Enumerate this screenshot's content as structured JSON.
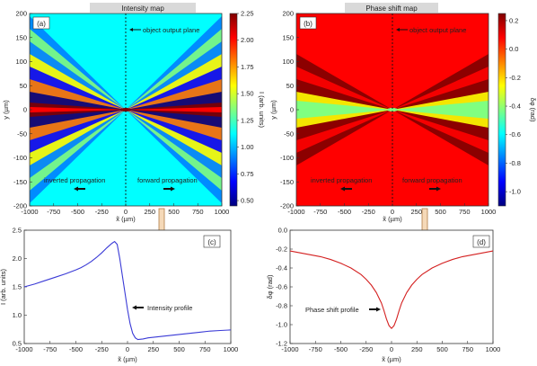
{
  "chart_data": [
    {
      "id": "a",
      "type": "heatmap",
      "title": "Intensity map",
      "panel_label": "(a)",
      "xlabel": "x̃ (µm)",
      "ylabel": "y (µm)",
      "xlim": [
        -1000,
        1000
      ],
      "ylim": [
        -200,
        200
      ],
      "xticks": [
        "-1000",
        "-750",
        "-500",
        "-250",
        "0",
        "250",
        "500",
        "750",
        "1000"
      ],
      "yticks": [
        "200",
        "150",
        "100",
        "50",
        "0",
        "-50",
        "-100",
        "-150",
        "-200"
      ],
      "colorbar": {
        "label": "I (arb. units)",
        "range": [
          0.45,
          2.25
        ],
        "ticks": [
          "2.25",
          "2.00",
          "1.75",
          "1.50",
          "1.25",
          "1.00",
          "0.75",
          "0.50"
        ],
        "colormap": "jet"
      },
      "background_level": 1.1,
      "focus_peak_level": 2.25,
      "annotations": {
        "plane": "object output plane",
        "left": "inverted propagation",
        "right": "forward propagation"
      }
    },
    {
      "id": "b",
      "type": "heatmap",
      "title": "Phase shift map",
      "panel_label": "(b)",
      "xlabel": "x̃ (µm)",
      "ylabel": "y (µm)",
      "xlim": [
        -1000,
        1000
      ],
      "ylim": [
        -200,
        200
      ],
      "xticks": [
        "-1000",
        "-750",
        "-500",
        "-250",
        "0",
        "250",
        "500",
        "750",
        "1000"
      ],
      "yticks": [
        "200",
        "150",
        "100",
        "50",
        "0",
        "-50",
        "-100",
        "-150",
        "-200"
      ],
      "colorbar": {
        "label": "δφ (rad)",
        "range": [
          -1.1,
          0.25
        ],
        "ticks": [
          "0.2",
          "0.0",
          "-0.2",
          "-0.4",
          "-0.6",
          "-0.8",
          "-1.0"
        ],
        "colormap": "jet"
      },
      "background_level": 0.0,
      "focus_level": -0.4,
      "annotations": {
        "plane": "object output plane",
        "left": "inverted propagation",
        "right": "forward propagation"
      }
    },
    {
      "id": "c",
      "type": "line",
      "panel_label": "(c)",
      "xlabel": "x̃ (µm)",
      "ylabel": "I (arb. units)",
      "xlim": [
        -1000,
        1000
      ],
      "ylim": [
        0.5,
        2.5
      ],
      "xticks": [
        "-1000",
        "-750",
        "-500",
        "-250",
        "0",
        "250",
        "500",
        "750",
        "1000"
      ],
      "yticks": [
        "2.5",
        "2.0",
        "1.5",
        "1.0",
        "0.5"
      ],
      "series": [
        {
          "name": "Intensity profile",
          "color": "#3a3ad6",
          "x": [
            -1000,
            -900,
            -800,
            -700,
            -600,
            -500,
            -450,
            -400,
            -350,
            -300,
            -250,
            -200,
            -150,
            -125,
            -100,
            -75,
            -50,
            -25,
            0,
            25,
            50,
            75,
            100,
            150,
            200,
            300,
            400,
            500,
            600,
            700,
            800,
            900,
            1000
          ],
          "y": [
            1.5,
            1.55,
            1.61,
            1.67,
            1.73,
            1.8,
            1.84,
            1.89,
            1.95,
            2.02,
            2.1,
            2.19,
            2.27,
            2.3,
            2.25,
            2.0,
            1.7,
            1.4,
            1.1,
            0.85,
            0.68,
            0.6,
            0.57,
            0.58,
            0.6,
            0.62,
            0.64,
            0.66,
            0.68,
            0.7,
            0.72,
            0.73,
            0.74
          ]
        }
      ]
    },
    {
      "id": "d",
      "type": "line",
      "panel_label": "(d)",
      "xlabel": "x̃ (µm)",
      "ylabel": "δφ (rad)",
      "xlim": [
        -1000,
        1000
      ],
      "ylim": [
        -1.2,
        0.0
      ],
      "xticks": [
        "-1000",
        "-750",
        "-500",
        "-250",
        "0",
        "250",
        "500",
        "750",
        "1000"
      ],
      "yticks": [
        "0.0",
        "-0.2",
        "-0.4",
        "-0.6",
        "-0.8",
        "-1.0",
        "-1.2"
      ],
      "series": [
        {
          "name": "Phase shift profile",
          "color": "#d42020",
          "x": [
            -1000,
            -900,
            -800,
            -700,
            -600,
            -500,
            -400,
            -300,
            -250,
            -200,
            -150,
            -100,
            -75,
            -50,
            -25,
            0,
            25,
            50,
            75,
            100,
            150,
            200,
            250,
            300,
            400,
            500,
            600,
            700,
            800,
            900,
            1000
          ],
          "y": [
            -0.22,
            -0.24,
            -0.26,
            -0.28,
            -0.31,
            -0.35,
            -0.4,
            -0.47,
            -0.52,
            -0.58,
            -0.66,
            -0.77,
            -0.85,
            -0.94,
            -1.01,
            -1.04,
            -1.01,
            -0.94,
            -0.85,
            -0.77,
            -0.66,
            -0.58,
            -0.52,
            -0.47,
            -0.4,
            -0.35,
            -0.31,
            -0.28,
            -0.26,
            -0.24,
            -0.22
          ]
        }
      ]
    }
  ]
}
